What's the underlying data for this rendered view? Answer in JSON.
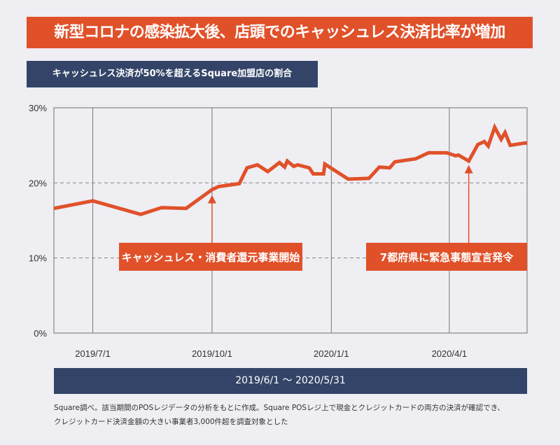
{
  "title": "新型コロナの感染拡大後、店頭でのキャッシュレス決済比率が増加",
  "subtitle": "キャッシュレス決済が50%を超えるSquare加盟店の割合",
  "period": "2019/6/1 〜 2020/5/31",
  "note_line1": "Square調べ。該当期間のPOSレジデータの分析をもとに作成。Square POSレジ上で現金とクレジットカードの両方の決済が確認でき、",
  "note_line2": "クレジットカード決済金額の大きい事業者3,000件超を調査対象とした",
  "colors": {
    "accent": "#e0512a",
    "navy": "#334468",
    "background": "#eeeef3"
  },
  "chart_data": {
    "type": "line",
    "title": "キャッシュレス決済が50%を超えるSquare加盟店の割合",
    "xlabel": "",
    "ylabel": "",
    "x_unit": "days since 2019/6/1",
    "xlim": [
      0,
      365
    ],
    "ylim": [
      0,
      30
    ],
    "yticks": [
      {
        "v": 0,
        "label": "0%"
      },
      {
        "v": 10,
        "label": "10%"
      },
      {
        "v": 20,
        "label": "20%"
      },
      {
        "v": 30,
        "label": "30%"
      }
    ],
    "xticks": [
      {
        "d": 30,
        "label": "2019/7/1"
      },
      {
        "d": 122,
        "label": "2019/10/1"
      },
      {
        "d": 214,
        "label": "2020/1/1"
      },
      {
        "d": 305,
        "label": "2020/4/1"
      }
    ],
    "series": [
      {
        "name": "割合",
        "points": [
          [
            0,
            16.6
          ],
          [
            30,
            17.6
          ],
          [
            67,
            15.8
          ],
          [
            83,
            16.7
          ],
          [
            102,
            16.6
          ],
          [
            122,
            19.1
          ],
          [
            127,
            19.5
          ],
          [
            143,
            19.9
          ],
          [
            149,
            22.0
          ],
          [
            157,
            22.4
          ],
          [
            165,
            21.5
          ],
          [
            174,
            22.7
          ],
          [
            178,
            22.1
          ],
          [
            180,
            22.9
          ],
          [
            185,
            22.2
          ],
          [
            188,
            22.4
          ],
          [
            197,
            22.0
          ],
          [
            200,
            21.2
          ],
          [
            208,
            21.2
          ],
          [
            209,
            22.5
          ],
          [
            227,
            20.5
          ],
          [
            243,
            20.6
          ],
          [
            251,
            22.1
          ],
          [
            259,
            22.0
          ],
          [
            263,
            22.8
          ],
          [
            279,
            23.2
          ],
          [
            289,
            24.0
          ],
          [
            303,
            24.0
          ],
          [
            310,
            23.6
          ],
          [
            312,
            23.7
          ],
          [
            320,
            22.9
          ],
          [
            327,
            25.1
          ],
          [
            332,
            25.5
          ],
          [
            335,
            24.9
          ],
          [
            340,
            27.4
          ],
          [
            345,
            25.8
          ],
          [
            348,
            26.7
          ],
          [
            352,
            25.0
          ],
          [
            363,
            25.3
          ],
          [
            365,
            25.3
          ]
        ]
      }
    ],
    "annotations": [
      {
        "d": 122,
        "v": 18.2,
        "label": "キャッシュレス・消費者還元事業開始"
      },
      {
        "d": 320,
        "v": 22.2,
        "label": "7都府県に緊急事態宣言発令"
      }
    ]
  }
}
